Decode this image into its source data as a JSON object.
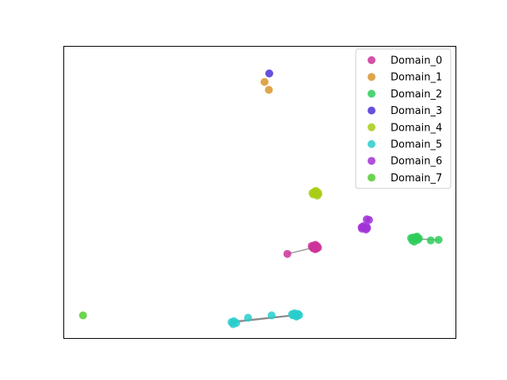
{
  "chart_data": {
    "type": "scatter",
    "title": "",
    "xlabel": "",
    "ylabel": "",
    "xlim": [
      0,
      100
    ],
    "ylim": [
      0,
      100
    ],
    "axes_ticks": false,
    "grid": false,
    "legend": "top-right",
    "series": [
      {
        "name": "Domain_0",
        "color": "#cc3399",
        "points": [
          [
            64.0,
            31.4
          ],
          [
            63.4,
            31.2
          ],
          [
            64.6,
            31.6
          ],
          [
            63.8,
            31.9
          ],
          [
            64.4,
            30.8
          ],
          [
            63.2,
            31.7
          ],
          [
            64.8,
            31.1
          ],
          [
            64.1,
            30.6
          ],
          [
            63.6,
            30.9
          ],
          [
            64.2,
            32.1
          ],
          [
            57.0,
            29.0
          ]
        ],
        "links": [
          [
            [
              57.0,
              29.0
            ],
            [
              63.8,
              31.2
            ]
          ]
        ]
      },
      {
        "name": "Domain_1",
        "color": "#d9952b",
        "points": [
          [
            51.2,
            87.7
          ],
          [
            52.3,
            85.0
          ]
        ],
        "links": []
      },
      {
        "name": "Domain_2",
        "color": "#2ecc5a",
        "points": [
          [
            89.5,
            34.1
          ],
          [
            88.8,
            33.6
          ],
          [
            90.2,
            33.8
          ],
          [
            89.0,
            34.6
          ],
          [
            90.0,
            34.9
          ],
          [
            89.3,
            33.2
          ],
          [
            88.5,
            34.4
          ],
          [
            90.5,
            34.3
          ],
          [
            89.7,
            34.7
          ],
          [
            93.5,
            33.6
          ],
          [
            95.5,
            33.8
          ]
        ],
        "links": [
          [
            [
              89.5,
              34.1
            ],
            [
              95.5,
              33.8
            ]
          ]
        ]
      },
      {
        "name": "Domain_3",
        "color": "#4b33d6",
        "points": [
          [
            52.4,
            90.6
          ]
        ],
        "links": []
      },
      {
        "name": "Domain_4",
        "color": "#a8cc14",
        "points": [
          [
            64.2,
            49.6
          ],
          [
            63.6,
            49.3
          ],
          [
            64.8,
            49.9
          ],
          [
            64.0,
            50.3
          ],
          [
            64.6,
            48.9
          ],
          [
            63.4,
            49.8
          ],
          [
            64.9,
            49.4
          ],
          [
            64.3,
            50.5
          ]
        ],
        "links": []
      },
      {
        "name": "Domain_5",
        "color": "#29cccc",
        "points": [
          [
            59.1,
            8.2
          ],
          [
            58.4,
            8.0
          ],
          [
            59.7,
            8.5
          ],
          [
            58.8,
            8.7
          ],
          [
            59.5,
            7.8
          ],
          [
            58.2,
            8.4
          ],
          [
            60.0,
            8.1
          ],
          [
            59.3,
            7.6
          ],
          [
            43.4,
            6.0
          ],
          [
            42.8,
            5.7
          ],
          [
            44.0,
            5.4
          ],
          [
            43.2,
            5.0
          ],
          [
            47.0,
            7.2
          ],
          [
            53.0,
            8.0
          ]
        ],
        "links": [
          [
            [
              43.4,
              6.0
            ],
            [
              59.1,
              8.2
            ]
          ],
          [
            [
              43.4,
              5.6
            ],
            [
              59.1,
              8.0
            ]
          ]
        ]
      },
      {
        "name": "Domain_6",
        "color": "#a233d6",
        "points": [
          [
            76.6,
            37.9
          ],
          [
            76.0,
            37.6
          ],
          [
            77.2,
            38.2
          ],
          [
            76.4,
            38.5
          ],
          [
            77.0,
            37.3
          ],
          [
            75.9,
            38.1
          ],
          [
            77.3,
            37.8
          ],
          [
            77.2,
            40.8
          ],
          [
            77.8,
            40.6
          ]
        ],
        "links": []
      },
      {
        "name": "Domain_7",
        "color": "#52cc33",
        "points": [
          [
            5.0,
            8.0
          ]
        ],
        "links": []
      }
    ]
  }
}
